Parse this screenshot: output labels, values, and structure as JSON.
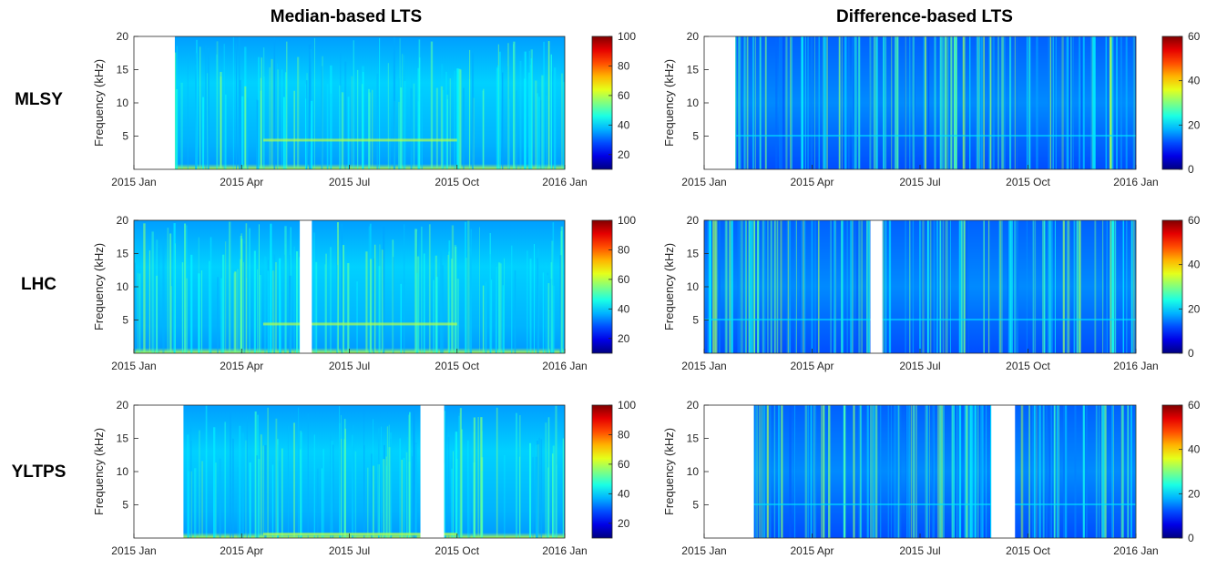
{
  "column_titles": [
    "Median-based LTS",
    "Difference-based LTS"
  ],
  "row_labels": [
    "MLSY",
    "LHC",
    "YLTPS"
  ],
  "chart_data": [
    {
      "type": "heatmap",
      "site": "MLSY",
      "kind": "Median-based LTS",
      "ylabel": "Frequency (kHz)",
      "yticks": [
        "5",
        "10",
        "15",
        "20"
      ],
      "ylim": [
        0,
        20
      ],
      "xticks": [
        "2015 Jan",
        "2015 Apr",
        "2015 Jul",
        "2015 Oct",
        "2016 Jan"
      ],
      "colorbar": {
        "min": 10,
        "max": 100,
        "ticks": [
          "20",
          "40",
          "60",
          "80",
          "100"
        ]
      },
      "gaps": [
        [
          0.0,
          0.095
        ]
      ],
      "colormap": "jet"
    },
    {
      "type": "heatmap",
      "site": "MLSY",
      "kind": "Difference-based LTS",
      "ylabel": "Frequency (kHz)",
      "yticks": [
        "5",
        "10",
        "15",
        "20"
      ],
      "ylim": [
        0,
        20
      ],
      "xticks": [
        "2015 Jan",
        "2015 Apr",
        "2015 Jul",
        "2015 Oct",
        "2016 Jan"
      ],
      "colorbar": {
        "min": 0,
        "max": 60,
        "ticks": [
          "0",
          "20",
          "40",
          "60"
        ]
      },
      "gaps": [
        [
          0.0,
          0.072
        ]
      ],
      "colormap": "jet"
    },
    {
      "type": "heatmap",
      "site": "LHC",
      "kind": "Median-based LTS",
      "ylabel": "Frequency (kHz)",
      "yticks": [
        "5",
        "10",
        "15",
        "20"
      ],
      "ylim": [
        0,
        20
      ],
      "xticks": [
        "2015 Jan",
        "2015 Apr",
        "2015 Jul",
        "2015 Oct",
        "2016 Jan"
      ],
      "colorbar": {
        "min": 10,
        "max": 100,
        "ticks": [
          "20",
          "40",
          "60",
          "80",
          "100"
        ]
      },
      "gaps": [
        [
          0.385,
          0.413
        ]
      ],
      "colormap": "jet"
    },
    {
      "type": "heatmap",
      "site": "LHC",
      "kind": "Difference-based LTS",
      "ylabel": "Frequency (kHz)",
      "yticks": [
        "5",
        "10",
        "15",
        "20"
      ],
      "ylim": [
        0,
        20
      ],
      "xticks": [
        "2015 Jan",
        "2015 Apr",
        "2015 Jul",
        "2015 Oct",
        "2016 Jan"
      ],
      "colorbar": {
        "min": 0,
        "max": 60,
        "ticks": [
          "0",
          "20",
          "40",
          "60"
        ]
      },
      "gaps": [
        [
          0.385,
          0.413
        ]
      ],
      "colormap": "jet"
    },
    {
      "type": "heatmap",
      "site": "YLTPS",
      "kind": "Median-based LTS",
      "ylabel": "Frequency (kHz)",
      "yticks": [
        "5",
        "10",
        "15",
        "20"
      ],
      "ylim": [
        0,
        20
      ],
      "xticks": [
        "2015 Jan",
        "2015 Apr",
        "2015 Jul",
        "2015 Oct",
        "2016 Jan"
      ],
      "colorbar": {
        "min": 10,
        "max": 100,
        "ticks": [
          "20",
          "40",
          "60",
          "80",
          "100"
        ]
      },
      "gaps": [
        [
          0.0,
          0.115
        ],
        [
          0.665,
          0.72
        ]
      ],
      "colormap": "jet"
    },
    {
      "type": "heatmap",
      "site": "YLTPS",
      "kind": "Difference-based LTS",
      "ylabel": "Frequency (kHz)",
      "yticks": [
        "5",
        "10",
        "15",
        "20"
      ],
      "ylim": [
        0,
        20
      ],
      "xticks": [
        "2015 Jan",
        "2015 Apr",
        "2015 Jul",
        "2015 Oct",
        "2016 Jan"
      ],
      "colorbar": {
        "min": 0,
        "max": 60,
        "ticks": [
          "0",
          "20",
          "40",
          "60"
        ]
      },
      "gaps": [
        [
          0.0,
          0.115
        ],
        [
          0.665,
          0.72
        ]
      ],
      "colormap": "jet"
    }
  ]
}
